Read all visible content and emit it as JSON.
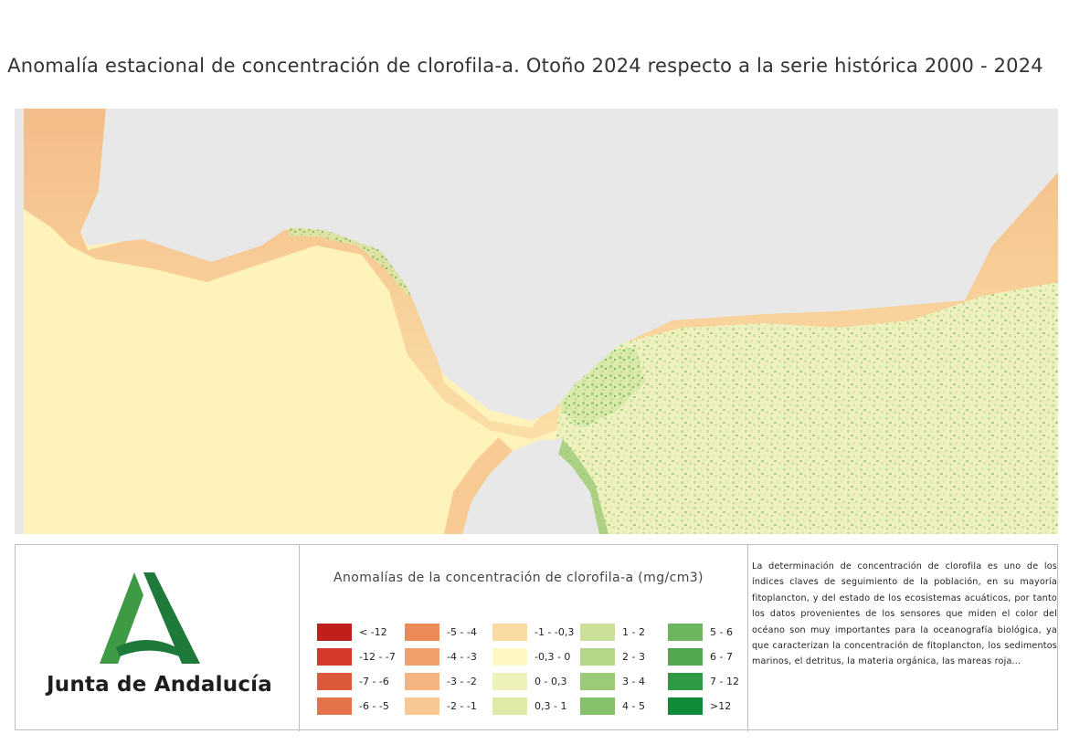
{
  "title": "Anomalía estacional de concentración de clorofila-a. Otoño 2024 respecto a la serie histórica 2000 - 2024",
  "logo": {
    "text": "Junta de Andalucía",
    "colors": {
      "dark_green": "#1e7a3a",
      "light_green": "#3f9a45"
    }
  },
  "map": {
    "land_color": "#e8e8e8",
    "sea_base_color": "#fdf3bb",
    "coast_orange": "#f4c08c",
    "positive_green": "#3f9a45"
  },
  "legend": {
    "title": "Anomalías de la concentración de clorofila-a (mg/cm3)",
    "columns": [
      [
        {
          "label": "< -12",
          "color": "#c0201c"
        },
        {
          "label": "-12 - -7",
          "color": "#d5392b"
        },
        {
          "label": "-7 - -6",
          "color": "#dc5a3a"
        },
        {
          "label": "-6 - -5",
          "color": "#e47349"
        }
      ],
      [
        {
          "label": "-5 - -4",
          "color": "#ec8a56"
        },
        {
          "label": "-4 - -3",
          "color": "#f0a06b"
        },
        {
          "label": "-3 - -2",
          "color": "#f4b37f"
        },
        {
          "label": "-2 - -1",
          "color": "#f8c893"
        }
      ],
      [
        {
          "label": "-1 - -0,3",
          "color": "#fbdba4"
        },
        {
          "label": "-0,3 - 0",
          "color": "#fff6c2"
        },
        {
          "label": "0 - 0,3",
          "color": "#eef1b9"
        },
        {
          "label": "0,3 - 1",
          "color": "#dfe9a8"
        }
      ],
      [
        {
          "label": "1 - 2",
          "color": "#cbe19a"
        },
        {
          "label": "2 - 3",
          "color": "#b4d688"
        },
        {
          "label": "3 - 4",
          "color": "#9ccb78"
        },
        {
          "label": "4 - 5",
          "color": "#85c06a"
        }
      ],
      [
        {
          "label": "5 - 6",
          "color": "#6cb45e"
        },
        {
          "label": "6 - 7",
          "color": "#4fa74f"
        },
        {
          "label": "7 - 12",
          "color": "#2f9a44"
        },
        {
          "label": ">12",
          "color": "#0f8a37"
        }
      ]
    ]
  },
  "description": "La determinación de concentración de clorofila es uno de los índices claves de seguimiento de la población, en su mayoría fitoplancton, y del estado de los ecosistemas acuáticos, por tanto los datos provenientes de los sensores que miden el color del océano son muy importantes para la oceanografía biológica, ya que caracterizan la concentración de fitoplancton, los sedimentos marinos, el detritus, la materia orgánica, las mareas roja..."
}
